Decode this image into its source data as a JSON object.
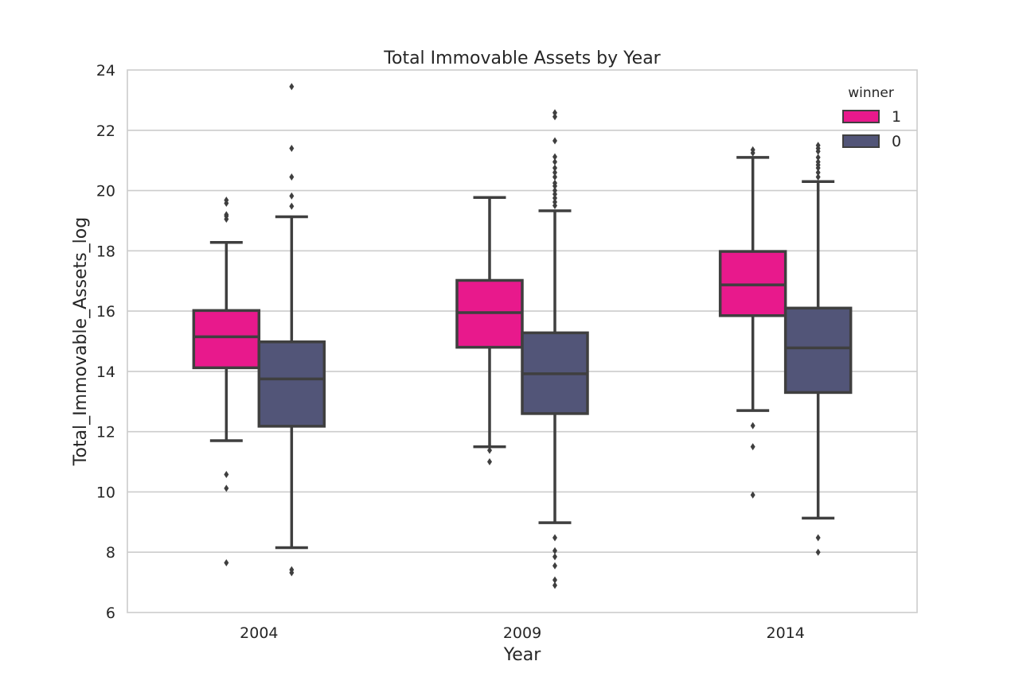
{
  "chart_data": {
    "type": "boxplot",
    "title": "Total Immovable Assets by Year",
    "xlabel": "Year",
    "ylabel": "Total_Immovable_Assets_log",
    "categories": [
      "2004",
      "2009",
      "2014"
    ],
    "ylim": [
      6,
      24
    ],
    "yticks": [
      6,
      8,
      10,
      12,
      14,
      16,
      18,
      20,
      22,
      24
    ],
    "grid": true,
    "legend": {
      "title": "winner",
      "placement": "top-right"
    },
    "series": [
      {
        "name": "1",
        "color": "#e8198c",
        "boxes": [
          {
            "whislo": 11.7,
            "q1": 14.12,
            "med": 15.15,
            "q3": 16.02,
            "whishi": 18.28,
            "fliers": [
              19.05,
              19.15,
              19.2,
              19.58,
              19.68,
              10.58,
              10.12,
              7.65
            ]
          },
          {
            "whislo": 11.5,
            "q1": 14.8,
            "med": 15.95,
            "q3": 17.02,
            "whishi": 19.77,
            "fliers": [
              11.38,
              11.0
            ]
          },
          {
            "whislo": 12.7,
            "q1": 15.85,
            "med": 16.87,
            "q3": 17.98,
            "whishi": 21.1,
            "fliers": [
              21.25,
              21.35,
              12.2,
              11.5,
              9.9
            ]
          }
        ]
      },
      {
        "name": "0",
        "color": "#525578",
        "boxes": [
          {
            "whislo": 8.15,
            "q1": 12.18,
            "med": 13.75,
            "q3": 14.98,
            "whishi": 19.13,
            "fliers": [
              19.48,
              19.82,
              20.45,
              21.4,
              23.45,
              7.42,
              7.32
            ]
          },
          {
            "whislo": 8.98,
            "q1": 12.6,
            "med": 13.92,
            "q3": 15.28,
            "whishi": 19.33,
            "fliers": [
              19.5,
              19.62,
              19.75,
              19.88,
              20.0,
              20.15,
              20.25,
              20.45,
              20.6,
              20.75,
              20.95,
              21.12,
              21.65,
              22.45,
              22.58,
              8.48,
              8.05,
              7.85,
              7.55,
              7.08,
              6.9
            ]
          },
          {
            "whislo": 9.13,
            "q1": 13.3,
            "med": 14.78,
            "q3": 16.1,
            "whishi": 20.3,
            "fliers": [
              20.45,
              20.6,
              20.75,
              20.85,
              20.95,
              21.1,
              21.3,
              21.4,
              21.5,
              8.48,
              8.0
            ]
          }
        ]
      }
    ]
  }
}
